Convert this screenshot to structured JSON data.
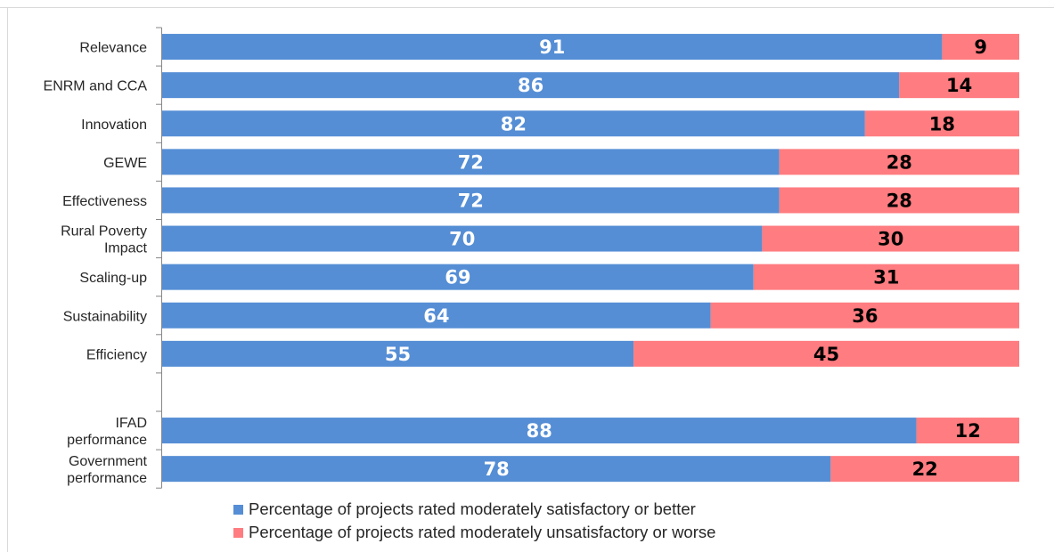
{
  "chart_data": {
    "type": "bar",
    "orientation": "horizontal",
    "stacked": true,
    "categories": [
      "Relevance",
      "ENRM and CCA",
      "Innovation",
      "GEWE",
      "Effectiveness",
      "Rural Poverty Impact",
      "Scaling-up",
      "Sustainability",
      "Efficiency",
      "",
      "IFAD performance",
      "Government performance"
    ],
    "series": [
      {
        "name": "Percentage of projects rated moderately satisfactory or better",
        "color": "#558ed5",
        "values": [
          91,
          86,
          82,
          72,
          72,
          70,
          69,
          64,
          55,
          null,
          88,
          78
        ]
      },
      {
        "name": "Percentage of projects rated moderately unsatisfactory or worse",
        "color": "#ff7c80",
        "values": [
          9,
          14,
          18,
          28,
          28,
          30,
          31,
          36,
          45,
          null,
          12,
          22
        ]
      }
    ],
    "xlim": [
      0,
      100
    ],
    "gridlines": false,
    "data_label_colors": [
      "#ffffff",
      "#000000"
    ],
    "legend_position": "bottom"
  }
}
